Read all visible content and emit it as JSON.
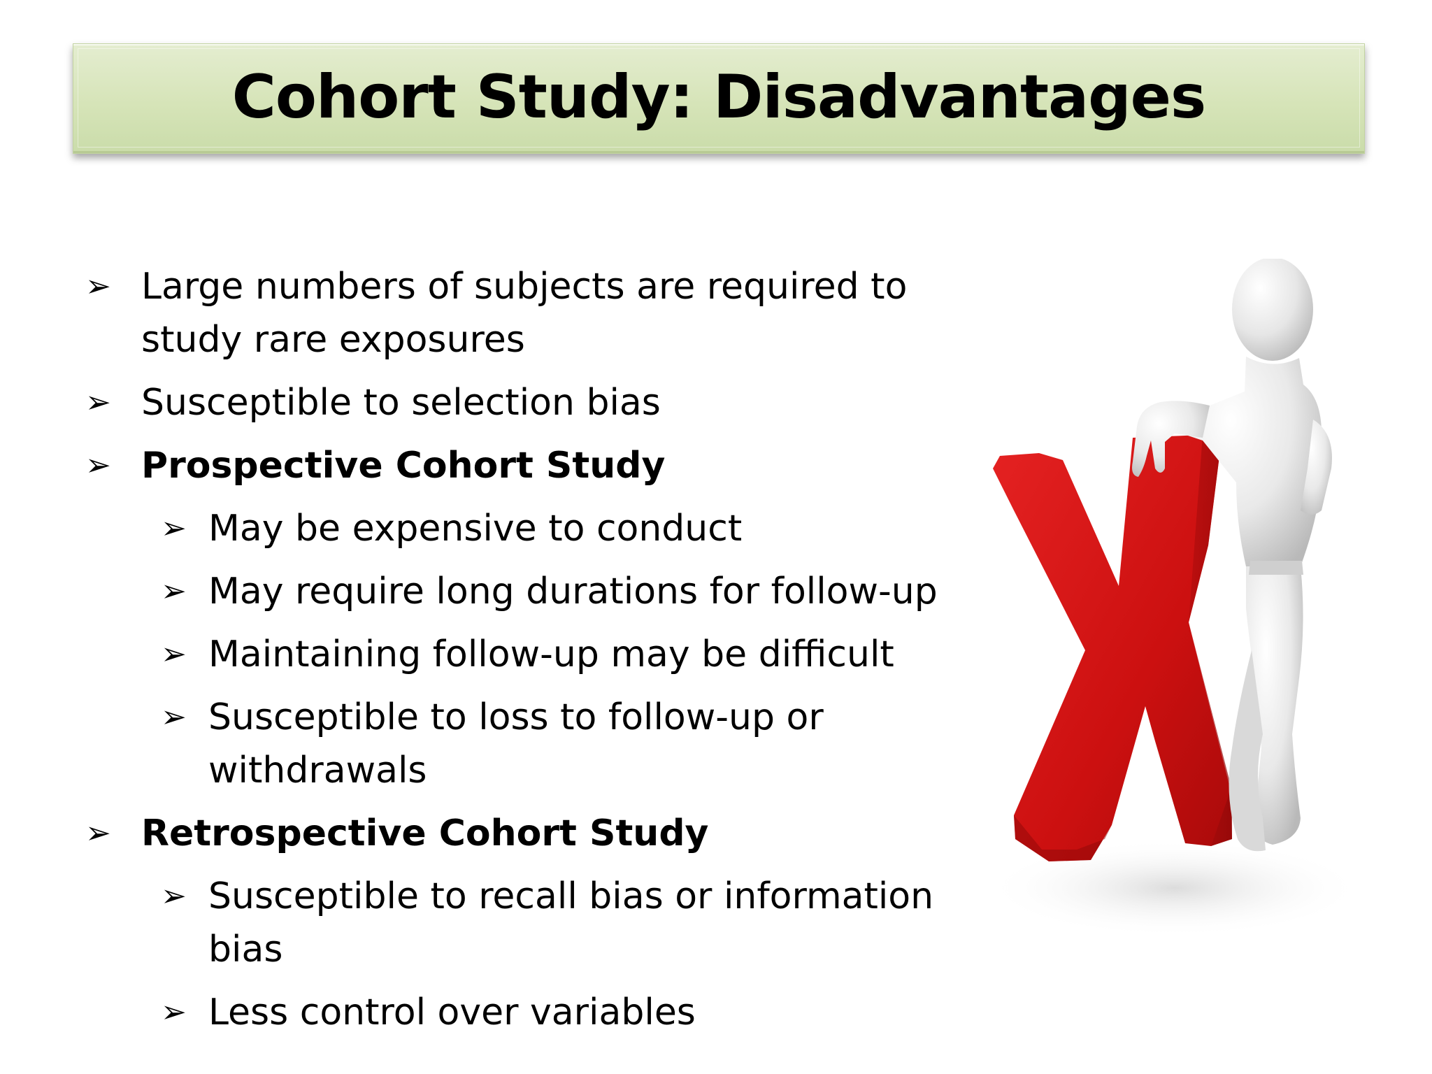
{
  "slide": {
    "title": "Cohort Study: Disadvantages",
    "bullets": [
      {
        "level": 1,
        "bold": false,
        "text": "Large numbers of subjects are required to study rare exposures"
      },
      {
        "level": 1,
        "bold": false,
        "text": "Susceptible to selection bias"
      },
      {
        "level": 1,
        "bold": true,
        "text": "Prospective Cohort Study"
      },
      {
        "level": 2,
        "bold": false,
        "text": "May be expensive to conduct"
      },
      {
        "level": 2,
        "bold": false,
        "text": "May require long durations for follow-up"
      },
      {
        "level": 2,
        "bold": false,
        "text": "Maintaining follow-up may be difficult"
      },
      {
        "level": 2,
        "bold": false,
        "text": "Susceptible to loss to follow-up or withdrawals"
      },
      {
        "level": 1,
        "bold": true,
        "text": "Retrospective Cohort Study"
      },
      {
        "level": 2,
        "bold": false,
        "text": "Susceptible to recall bias or information bias"
      },
      {
        "level": 2,
        "bold": false,
        "text": "Less control over variables"
      }
    ],
    "bullet_glyph": "➢",
    "illustration": "3d-person-leaning-on-red-x",
    "colors": {
      "title_bar": "#d6e4b8",
      "x_mark": "#d41414",
      "figure": "#e6e6e6"
    }
  }
}
